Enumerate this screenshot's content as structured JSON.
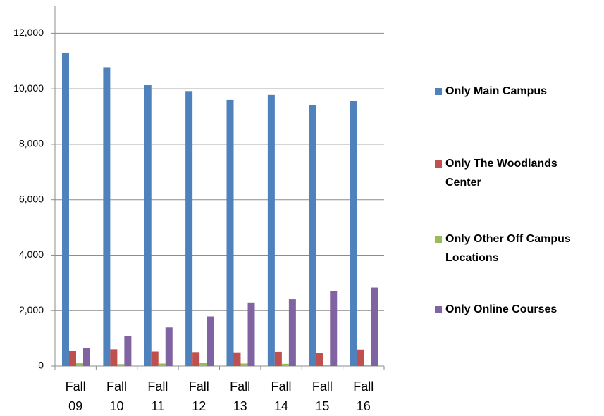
{
  "chart_data": {
    "type": "bar",
    "categories": [
      "Fall 09",
      "Fall 10",
      "Fall 11",
      "Fall 12",
      "Fall 13",
      "Fall 14",
      "Fall 15",
      "Fall 16"
    ],
    "series": [
      {
        "name": "Only Main Campus",
        "color": "#4f81bd",
        "values": [
          11300,
          10780,
          10130,
          9920,
          9600,
          9780,
          9420,
          9570
        ]
      },
      {
        "name": "Only The Woodlands Center",
        "color": "#c0504d",
        "values": [
          550,
          600,
          520,
          500,
          490,
          510,
          460,
          590
        ]
      },
      {
        "name": "Only Other Off Campus Locations",
        "color": "#9bbb59",
        "values": [
          100,
          70,
          90,
          110,
          90,
          80,
          50,
          50
        ]
      },
      {
        "name": "Only Online Courses",
        "color": "#8064a2",
        "values": [
          640,
          1070,
          1390,
          1790,
          2290,
          2410,
          2710,
          2830
        ]
      }
    ],
    "ylim": [
      0,
      13000
    ],
    "yticks": [
      0,
      {
        "value": 2000,
        "label": "2,000"
      },
      {
        "value": 4000,
        "label": "4,000"
      },
      {
        "value": 6000,
        "label": "6,000"
      },
      {
        "value": 8000,
        "label": "8,000"
      },
      {
        "value": 10000,
        "label": "10,000"
      },
      {
        "value": 12000,
        "label": "12,000"
      }
    ],
    "grid": true,
    "legend": "right"
  }
}
